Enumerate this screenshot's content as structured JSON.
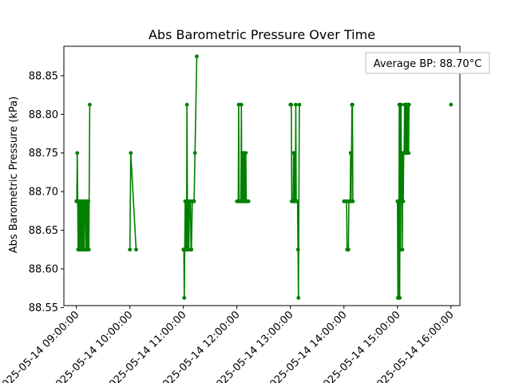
{
  "chart_data": {
    "type": "line",
    "title": "Abs Barometric Pressure Over Time",
    "xlabel": "",
    "ylabel": "Abs Barometric Pressure (kPa)",
    "ylim": [
      88.5525,
      88.8881
    ],
    "yticks": [
      88.55,
      88.6,
      88.65,
      88.7,
      88.75,
      88.8,
      88.85
    ],
    "ytick_labels": [
      "88.55",
      "88.60",
      "88.65",
      "88.70",
      "88.75",
      "88.80",
      "88.85"
    ],
    "xlim": [
      "2025-05-14 08:46:00",
      "2025-05-14 16:10:00"
    ],
    "xticks": [
      "2025-05-14 09:00:00",
      "2025-05-14 10:00:00",
      "2025-05-14 11:00:00",
      "2025-05-14 12:00:00",
      "2025-05-14 13:00:00",
      "2025-05-14 14:00:00",
      "2025-05-14 15:00:00",
      "2025-05-14 16:00:00"
    ],
    "xtick_labels": [
      "2025-05-14 09:00:00",
      "2025-05-14 10:00:00",
      "2025-05-14 11:00:00",
      "2025-05-14 12:00:00",
      "2025-05-14 13:00:00",
      "2025-05-14 14:00:00",
      "2025-05-14 15:00:00",
      "2025-05-14 16:00:00"
    ],
    "grid": false,
    "line_color": "#008000",
    "annotation": "Average BP: 88.70°C",
    "annotation_position": "top-right",
    "series": [
      {
        "points": [
          [
            "2025-05-14 09:00:00",
            88.6875
          ],
          [
            "2025-05-14 09:00:30",
            88.6875
          ],
          [
            "2025-05-14 09:01:00",
            88.75
          ],
          [
            "2025-05-14 09:01:30",
            88.6875
          ],
          [
            "2025-05-14 09:02:00",
            88.625
          ],
          [
            "2025-05-14 09:02:30",
            88.6875
          ],
          [
            "2025-05-14 09:03:00",
            88.625
          ],
          [
            "2025-05-14 09:03:30",
            88.6875
          ],
          [
            "2025-05-14 09:04:00",
            88.625
          ],
          [
            "2025-05-14 09:04:30",
            88.6875
          ],
          [
            "2025-05-14 09:05:00",
            88.625
          ],
          [
            "2025-05-14 09:05:30",
            88.6875
          ],
          [
            "2025-05-14 09:06:00",
            88.625
          ],
          [
            "2025-05-14 09:06:30",
            88.6875
          ],
          [
            "2025-05-14 09:07:00",
            88.625
          ],
          [
            "2025-05-14 09:07:30",
            88.6875
          ],
          [
            "2025-05-14 09:08:00",
            88.625
          ],
          [
            "2025-05-14 09:08:30",
            88.6875
          ],
          [
            "2025-05-14 09:09:00",
            88.625
          ],
          [
            "2025-05-14 09:09:30",
            88.6875
          ],
          [
            "2025-05-14 09:10:00",
            88.6875
          ],
          [
            "2025-05-14 09:10:30",
            88.6875
          ],
          [
            "2025-05-14 09:11:00",
            88.625
          ],
          [
            "2025-05-14 09:11:30",
            88.625
          ],
          [
            "2025-05-14 09:12:00",
            88.6875
          ],
          [
            "2025-05-14 09:12:30",
            88.6875
          ],
          [
            "2025-05-14 09:13:00",
            88.625
          ],
          [
            "2025-05-14 09:13:30",
            88.6875
          ],
          [
            "2025-05-14 09:14:00",
            88.625
          ],
          [
            "2025-05-14 09:15:00",
            88.8125
          ],
          null,
          [
            "2025-05-14 10:00:00",
            88.625
          ],
          [
            "2025-05-14 10:01:00",
            88.75
          ],
          [
            "2025-05-14 10:07:00",
            88.625
          ],
          null,
          [
            "2025-05-14 11:00:00",
            88.625
          ],
          [
            "2025-05-14 11:00:30",
            88.625
          ],
          [
            "2025-05-14 11:01:00",
            88.5625
          ],
          [
            "2025-05-14 11:01:30",
            88.625
          ],
          [
            "2025-05-14 11:02:00",
            88.6875
          ],
          [
            "2025-05-14 11:02:30",
            88.625
          ],
          [
            "2025-05-14 11:03:00",
            88.6875
          ],
          [
            "2025-05-14 11:03:30",
            88.625
          ],
          [
            "2025-05-14 11:04:00",
            88.8125
          ],
          [
            "2025-05-14 11:04:30",
            88.6875
          ],
          [
            "2025-05-14 11:05:00",
            88.625
          ],
          [
            "2025-05-14 11:05:30",
            88.6875
          ],
          [
            "2025-05-14 11:06:00",
            88.625
          ],
          [
            "2025-05-14 11:07:00",
            88.6875
          ],
          [
            "2025-05-14 11:08:00",
            88.6875
          ],
          [
            "2025-05-14 11:08:30",
            88.625
          ],
          [
            "2025-05-14 11:09:00",
            88.625
          ],
          [
            "2025-05-14 11:10:00",
            88.6875
          ],
          [
            "2025-05-14 11:10:30",
            88.6875
          ],
          [
            "2025-05-14 11:11:00",
            88.6875
          ],
          [
            "2025-05-14 11:11:30",
            88.6875
          ],
          [
            "2025-05-14 11:12:00",
            88.6875
          ],
          [
            "2025-05-14 11:13:00",
            88.75
          ],
          [
            "2025-05-14 11:15:00",
            88.875
          ],
          null,
          [
            "2025-05-14 12:00:00",
            88.6875
          ],
          [
            "2025-05-14 12:00:30",
            88.6875
          ],
          [
            "2025-05-14 12:01:00",
            88.6875
          ],
          [
            "2025-05-14 12:01:30",
            88.6875
          ],
          [
            "2025-05-14 12:02:00",
            88.8125
          ],
          [
            "2025-05-14 12:02:30",
            88.6875
          ],
          [
            "2025-05-14 12:03:00",
            88.6875
          ],
          [
            "2025-05-14 12:03:30",
            88.6875
          ],
          [
            "2025-05-14 12:04:00",
            88.6875
          ],
          [
            "2025-05-14 12:04:30",
            88.6875
          ],
          [
            "2025-05-14 12:05:00",
            88.8125
          ],
          [
            "2025-05-14 12:05:30",
            88.6875
          ],
          [
            "2025-05-14 12:06:00",
            88.75
          ],
          [
            "2025-05-14 12:06:30",
            88.6875
          ],
          [
            "2025-05-14 12:07:00",
            88.75
          ],
          [
            "2025-05-14 12:07:30",
            88.6875
          ],
          [
            "2025-05-14 12:08:00",
            88.75
          ],
          [
            "2025-05-14 12:08:30",
            88.6875
          ],
          [
            "2025-05-14 12:09:00",
            88.75
          ],
          [
            "2025-05-14 12:09:30",
            88.6875
          ],
          [
            "2025-05-14 12:10:00",
            88.75
          ],
          [
            "2025-05-14 12:10:30",
            88.6875
          ],
          [
            "2025-05-14 12:11:00",
            88.6875
          ],
          [
            "2025-05-14 12:11:30",
            88.6875
          ],
          [
            "2025-05-14 12:12:00",
            88.6875
          ],
          [
            "2025-05-14 12:13:00",
            88.6875
          ],
          null,
          [
            "2025-05-14 13:00:00",
            88.8125
          ],
          [
            "2025-05-14 13:00:30",
            88.8125
          ],
          [
            "2025-05-14 13:01:00",
            88.8125
          ],
          [
            "2025-05-14 13:01:30",
            88.6875
          ],
          [
            "2025-05-14 13:02:00",
            88.6875
          ],
          [
            "2025-05-14 13:03:00",
            88.6875
          ],
          [
            "2025-05-14 13:03:30",
            88.75
          ],
          [
            "2025-05-14 13:04:00",
            88.6875
          ],
          [
            "2025-05-14 13:04:30",
            88.75
          ],
          [
            "2025-05-14 13:05:00",
            88.6875
          ],
          [
            "2025-05-14 13:05:30",
            88.6875
          ],
          [
            "2025-05-14 13:06:00",
            88.8125
          ],
          [
            "2025-05-14 13:06:30",
            88.6875
          ],
          [
            "2025-05-14 13:07:00",
            88.6875
          ],
          [
            "2025-05-14 13:07:30",
            88.6875
          ],
          [
            "2025-05-14 13:08:00",
            88.6875
          ],
          [
            "2025-05-14 13:08:30",
            88.625
          ],
          [
            "2025-05-14 13:09:00",
            88.5625
          ],
          [
            "2025-05-14 13:10:00",
            88.8125
          ],
          null,
          [
            "2025-05-14 14:00:00",
            88.6875
          ],
          [
            "2025-05-14 14:01:00",
            88.6875
          ],
          [
            "2025-05-14 14:02:00",
            88.6875
          ],
          [
            "2025-05-14 14:03:00",
            88.6875
          ],
          [
            "2025-05-14 14:03:30",
            88.625
          ],
          [
            "2025-05-14 14:04:00",
            88.625
          ],
          [
            "2025-05-14 14:05:00",
            88.625
          ],
          [
            "2025-05-14 14:05:30",
            88.6875
          ],
          [
            "2025-05-14 14:06:00",
            88.6875
          ],
          [
            "2025-05-14 14:07:00",
            88.6875
          ],
          [
            "2025-05-14 14:07:30",
            88.75
          ],
          [
            "2025-05-14 14:08:00",
            88.6875
          ],
          [
            "2025-05-14 14:09:00",
            88.8125
          ],
          [
            "2025-05-14 14:09:30",
            88.8125
          ],
          [
            "2025-05-14 14:10:00",
            88.6875
          ],
          null,
          [
            "2025-05-14 15:00:00",
            88.6875
          ],
          [
            "2025-05-14 15:00:30",
            88.5625
          ],
          [
            "2025-05-14 15:01:00",
            88.6875
          ],
          [
            "2025-05-14 15:01:30",
            88.5625
          ],
          [
            "2025-05-14 15:02:00",
            88.8125
          ],
          [
            "2025-05-14 15:02:30",
            88.5625
          ],
          [
            "2025-05-14 15:03:00",
            88.8125
          ],
          [
            "2025-05-14 15:03:30",
            88.625
          ],
          [
            "2025-05-14 15:04:00",
            88.8125
          ],
          [
            "2025-05-14 15:04:30",
            88.6875
          ],
          [
            "2025-05-14 15:05:00",
            88.75
          ],
          [
            "2025-05-14 15:05:30",
            88.625
          ],
          [
            "2025-05-14 15:06:00",
            88.75
          ],
          [
            "2025-05-14 15:06:30",
            88.6875
          ],
          [
            "2025-05-14 15:07:00",
            88.75
          ],
          [
            "2025-05-14 15:07:30",
            88.75
          ],
          [
            "2025-05-14 15:08:00",
            88.8125
          ],
          [
            "2025-05-14 15:08:30",
            88.75
          ],
          [
            "2025-05-14 15:09:00",
            88.8125
          ],
          [
            "2025-05-14 15:09:30",
            88.75
          ],
          [
            "2025-05-14 15:10:00",
            88.8125
          ],
          [
            "2025-05-14 15:10:30",
            88.75
          ],
          [
            "2025-05-14 15:11:00",
            88.8125
          ],
          [
            "2025-05-14 15:11:30",
            88.75
          ],
          [
            "2025-05-14 15:12:00",
            88.8125
          ],
          [
            "2025-05-14 15:12:30",
            88.75
          ],
          [
            "2025-05-14 15:13:00",
            88.8125
          ],
          null,
          [
            "2025-05-14 16:00:00",
            88.8125
          ]
        ]
      }
    ]
  }
}
